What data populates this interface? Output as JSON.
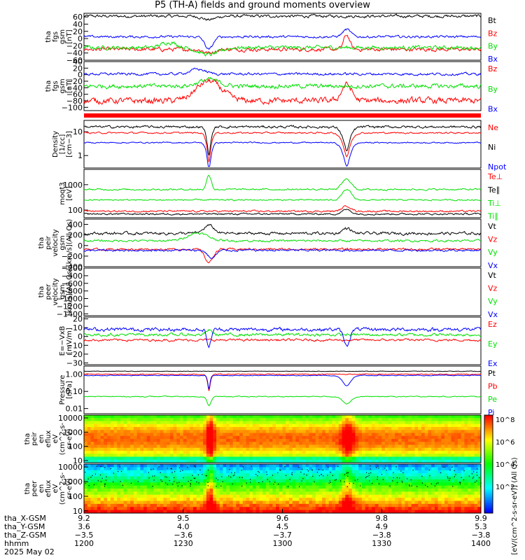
{
  "title": "P5 (TH-A) fields and ground moments overview",
  "colors": {
    "black": "#000000",
    "red": "#ff0000",
    "green": "#00e000",
    "blue": "#0000ff"
  },
  "chart_data": [
    {
      "type": "line",
      "ylabel": [
        "tha",
        "fgs",
        "gsm",
        "[nT]"
      ],
      "ylim": [
        -60,
        70
      ],
      "yticks": [
        "60",
        "40",
        "20",
        "0",
        "−20",
        "−40",
        "−60"
      ],
      "ytick_values": [
        60,
        40,
        20,
        0,
        -20,
        -40,
        -60
      ],
      "series": [
        {
          "name": "Bt",
          "color": "black"
        },
        {
          "name": "Bz",
          "color": "red"
        },
        {
          "name": "By",
          "color": "green"
        },
        {
          "name": "Bx",
          "color": "blue"
        }
      ]
    },
    {
      "type": "line",
      "ylabel": [
        "tha",
        "fgs",
        "gsm",
        "[nT]"
      ],
      "ylim": [
        -110,
        40
      ],
      "yticks": [
        "40",
        "20",
        "0",
        "−20",
        "−40",
        "−60",
        "−80",
        "−100"
      ],
      "ytick_values": [
        40,
        20,
        0,
        -20,
        -40,
        -60,
        -80,
        -100
      ],
      "series": [
        {
          "name": "Bz",
          "color": "red"
        },
        {
          "name": "By",
          "color": "green"
        },
        {
          "name": "Bx",
          "color": "blue"
        }
      ]
    },
    {
      "type": "line",
      "ylabel": [
        "Density",
        "[1/cc]",
        "[cm−3]"
      ],
      "scale": "log",
      "ylim": [
        0.3,
        30
      ],
      "yticks": [
        "10",
        "1"
      ],
      "ytick_values": [
        10,
        1
      ],
      "series": [
        {
          "name": "Ne",
          "color": "red"
        },
        {
          "name": "Ni",
          "color": "black"
        },
        {
          "name": "Npot",
          "color": "blue"
        }
      ]
    },
    {
      "type": "line",
      "ylabel": [
        "moqt3",
        "[eV]"
      ],
      "scale": "log",
      "ylim": [
        50,
        4000
      ],
      "yticks": [
        "1000",
        "100"
      ],
      "ytick_values": [
        1000,
        100
      ],
      "series": [
        {
          "name": "Te⊥",
          "color": "red"
        },
        {
          "name": "Te∥",
          "color": "black"
        },
        {
          "name": "Ti⊥",
          "color": "green"
        },
        {
          "name": "Ti∥",
          "color": "green"
        }
      ]
    },
    {
      "type": "line",
      "ylabel": [
        "tha",
        "peir",
        "velocity",
        "gsm",
        "[km/s](All Qs)"
      ],
      "ylim": [
        -400,
        500
      ],
      "yticks": [
        "400",
        "200",
        "0",
        "−200",
        "−400"
      ],
      "ytick_values": [
        400,
        200,
        0,
        -200,
        -400
      ],
      "series": [
        {
          "name": "Vt",
          "color": "black"
        },
        {
          "name": "Vz",
          "color": "red"
        },
        {
          "name": "Vy",
          "color": "green"
        },
        {
          "name": "Vx",
          "color": "blue"
        }
      ]
    },
    {
      "type": "line",
      "ylabel": [
        "tha",
        "peer",
        "velocity",
        "gsm",
        "[km/s](All Qs)"
      ],
      "ylim": [
        -1450,
        -200
      ],
      "yticks": [
        "−200",
        "−400",
        "−600",
        "−800",
        "−1000",
        "−1200",
        "−1400"
      ],
      "ytick_values": [
        -200,
        -400,
        -600,
        -800,
        -1000,
        -1200,
        -1400
      ],
      "series": [
        {
          "name": "Vt",
          "color": "black"
        },
        {
          "name": "Vz",
          "color": "red"
        },
        {
          "name": "Vy",
          "color": "green"
        },
        {
          "name": "Vx",
          "color": "blue"
        }
      ]
    },
    {
      "type": "line",
      "ylabel": [
        "E=−VxB",
        "[mV/m]"
      ],
      "ylim": [
        -32,
        22
      ],
      "yticks": [
        "20",
        "10",
        "0",
        "−10",
        "−20",
        "−30"
      ],
      "ytick_values": [
        20,
        10,
        0,
        -10,
        -20,
        -30
      ],
      "series": [
        {
          "name": "Ez",
          "color": "red"
        },
        {
          "name": "Ey",
          "color": "green"
        },
        {
          "name": "Ex",
          "color": "blue"
        }
      ]
    },
    {
      "type": "line",
      "ylabel": [
        "Pressure",
        "[nPa]"
      ],
      "scale": "log",
      "ylim": [
        0.005,
        3
      ],
      "yticks": [
        "1.00",
        "0.10",
        "0.01"
      ],
      "ytick_values": [
        1,
        0.1,
        0.01
      ],
      "series": [
        {
          "name": "Pt",
          "color": "black"
        },
        {
          "name": "Pb",
          "color": "red"
        },
        {
          "name": "Pe",
          "color": "green"
        },
        {
          "name": "Pi",
          "color": "blue"
        }
      ]
    },
    {
      "type": "heatmap",
      "ylabel": [
        "tha",
        "peir",
        "en",
        "eflux",
        "eV",
        "(cm^2-s-",
        "sr-eV)"
      ],
      "yticks": [
        "10000",
        "1000",
        "100",
        "10"
      ],
      "ytick_values": [
        10000,
        1000,
        100,
        10
      ]
    },
    {
      "type": "heatmap",
      "ylabel": [
        "tha",
        "peer",
        "en",
        "eflux",
        "eV",
        "(cm^2-s-",
        "sr-eV)"
      ],
      "yticks": [
        "10000",
        "1000",
        "100",
        "10"
      ],
      "ytick_values": [
        10000,
        1000,
        100,
        10
      ]
    }
  ],
  "colorbar": {
    "label": "[eV/(cm^2-s-sr-eV)] (All Qs)",
    "ticks": [
      "10^8",
      "10^6",
      "10^4",
      "10^2"
    ],
    "tick_values": [
      8,
      6,
      4,
      2
    ]
  },
  "xaxis": {
    "row_labels": [
      "tha_X-GSM",
      "tha_Y-GSM",
      "tha_Z-GSM",
      "hhmm",
      "2025 May 02"
    ],
    "ticks": [
      {
        "x": "9.2",
        "y": "3.6",
        "z": "−3.5",
        "t": "1200"
      },
      {
        "x": "9.5",
        "y": "4.0",
        "z": "−3.6",
        "t": "1230"
      },
      {
        "x": "9.6",
        "y": "4.5",
        "z": "−3.7",
        "t": "1300"
      },
      {
        "x": "9.8",
        "y": "4.9",
        "z": "−3.8",
        "t": "1330"
      },
      {
        "x": "9.9",
        "y": "5.3",
        "z": "−3.8",
        "t": "1400"
      }
    ]
  }
}
